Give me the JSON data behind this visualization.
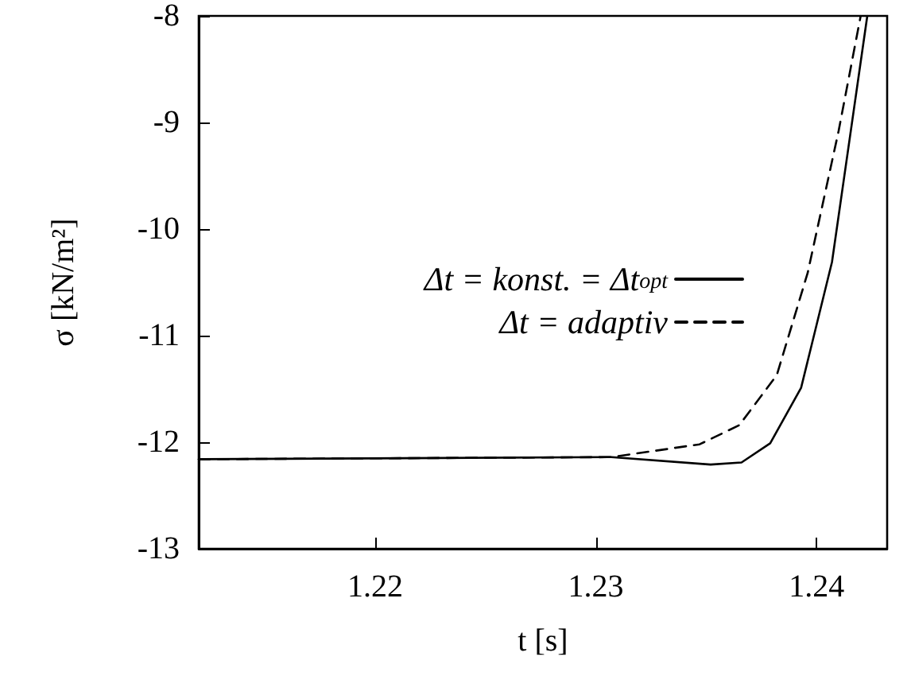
{
  "chart_data": {
    "type": "line",
    "xlabel": "t [s]",
    "ylabel": "σ [kN/m²]",
    "xlim": [
      1.212,
      1.2432
    ],
    "xticks": [
      1.22,
      1.23,
      1.24
    ],
    "ylim": [
      -13,
      -8
    ],
    "yticks": [
      -13,
      -12,
      -11,
      -10,
      -9,
      -8
    ],
    "grid": false,
    "legend": "right",
    "marker": "none",
    "series": [
      {
        "name": "Δt = konst. = Δt$_{opt}$",
        "color": "#000000",
        "line_style": "solid",
        "x": [
          1.212,
          1.2307,
          1.2352,
          1.2366,
          1.2379,
          1.2393,
          1.2407,
          1.2423
        ],
        "values": [
          -12.16,
          -12.14,
          -12.21,
          -12.19,
          -12.01,
          -11.49,
          -10.31,
          -8.0
        ]
      },
      {
        "name": "Δt = adaptiv",
        "color": "#000000",
        "line_style": "dashed",
        "x": [
          1.212,
          1.2307,
          1.2347,
          1.2365,
          1.2382,
          1.2396,
          1.241,
          1.242
        ],
        "values": [
          -12.16,
          -12.14,
          -12.02,
          -11.84,
          -11.37,
          -10.41,
          -9.08,
          -8.0
        ]
      }
    ]
  }
}
